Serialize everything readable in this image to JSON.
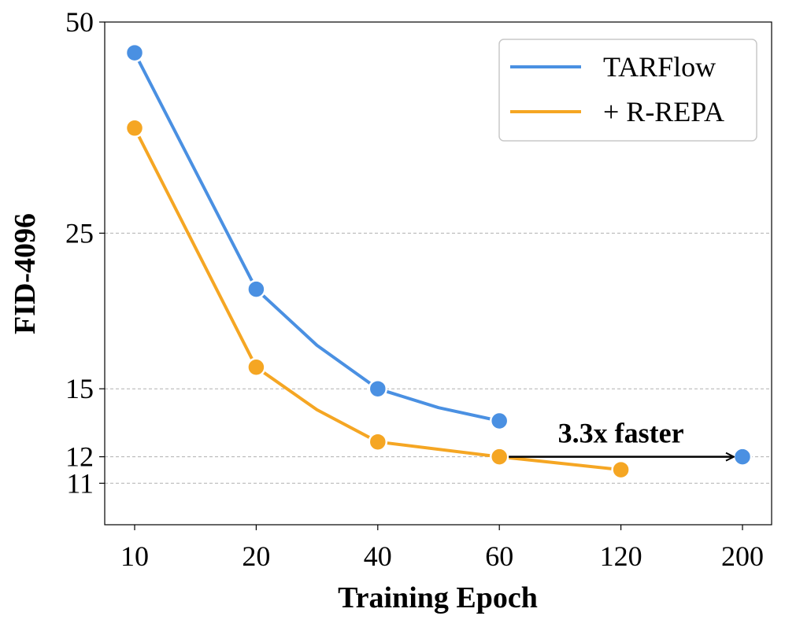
{
  "chart_data": {
    "type": "line",
    "title": "",
    "xlabel": "Training Epoch",
    "ylabel": "FID-4096",
    "yscale": "log",
    "ylim": [
      9.6,
      50
    ],
    "grid": "horizontal dashed",
    "categories": [
      "10",
      "20",
      "40",
      "60",
      "120",
      "200"
    ],
    "yticks": [
      {
        "value": 11,
        "label": "11",
        "grid": true
      },
      {
        "value": 12,
        "label": "12",
        "grid": true
      },
      {
        "value": 15,
        "label": "15",
        "grid": true
      },
      {
        "value": 25,
        "label": "25",
        "grid": true
      },
      {
        "value": 50,
        "label": "50",
        "grid": false
      }
    ],
    "series": [
      {
        "name": "TARFlow",
        "color": "#4A90E2",
        "points": [
          {
            "x": 0,
            "y": 45.2,
            "marker": true
          },
          {
            "x": 1,
            "y": 20.8,
            "marker": true
          },
          {
            "x": 1.5,
            "y": 17.3,
            "marker": false
          },
          {
            "x": 2,
            "y": 15.0,
            "marker": true
          },
          {
            "x": 2.5,
            "y": 14.1,
            "marker": false
          },
          {
            "x": 3,
            "y": 13.5,
            "marker": true
          },
          {
            "x": 5,
            "y": 12.0,
            "marker": true
          }
        ]
      },
      {
        "name": "+ R-REPA",
        "color": "#F5A623",
        "points": [
          {
            "x": 0,
            "y": 35.3,
            "marker": true
          },
          {
            "x": 1,
            "y": 16.1,
            "marker": true
          },
          {
            "x": 1.5,
            "y": 14.0,
            "marker": false
          },
          {
            "x": 2,
            "y": 12.6,
            "marker": true
          },
          {
            "x": 3,
            "y": 12.0,
            "marker": true
          },
          {
            "x": 4,
            "y": 11.5,
            "marker": true
          }
        ]
      }
    ],
    "legend": {
      "placement": "top-right"
    },
    "annotations": [
      {
        "text": "3.3x faster",
        "arrow_from": {
          "x": 3,
          "y": 12.0
        },
        "arrow_to": {
          "x": 5,
          "y": 12.0
        }
      }
    ]
  }
}
